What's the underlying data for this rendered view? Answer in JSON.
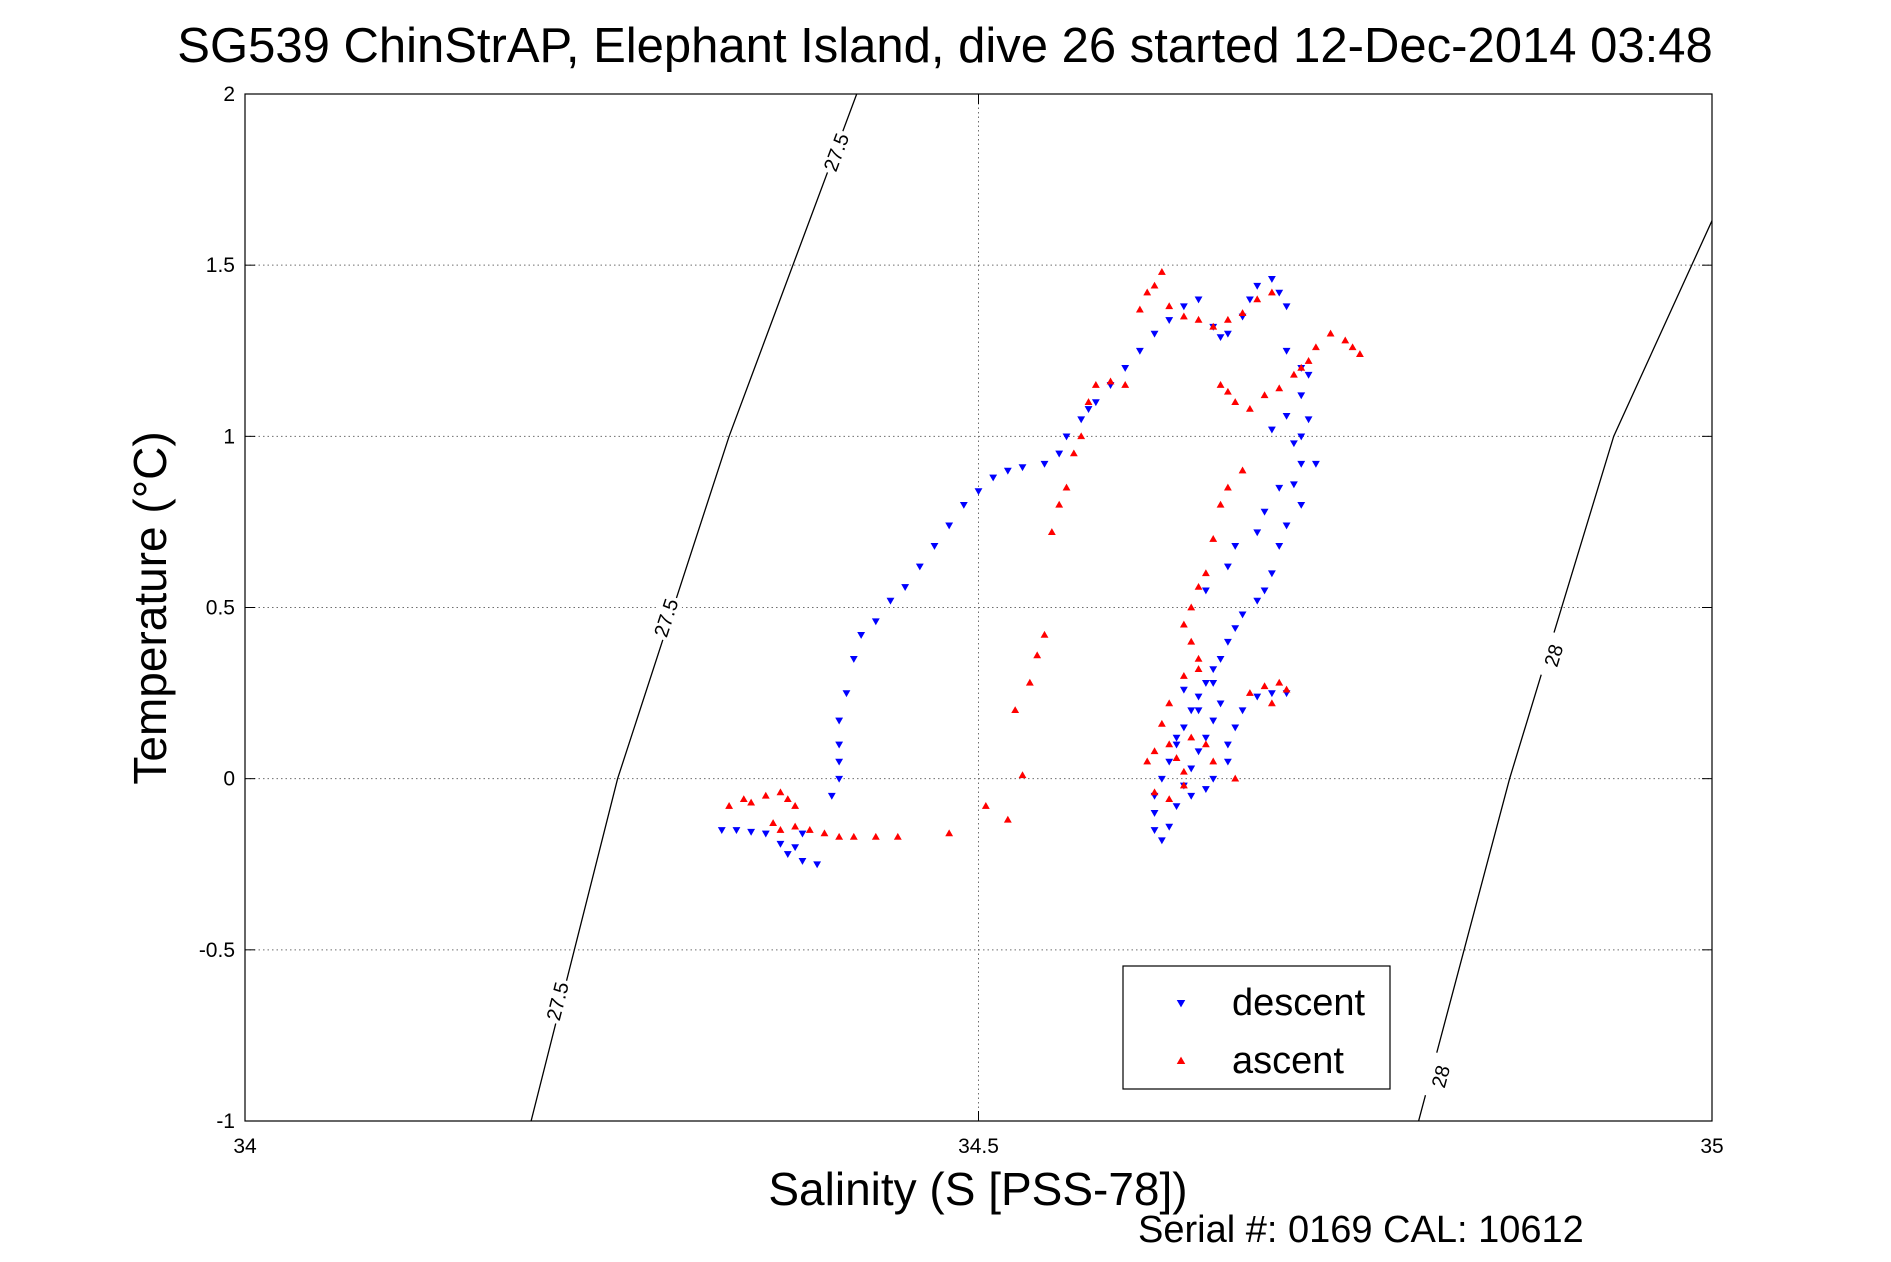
{
  "chart_data": {
    "type": "scatter",
    "title": "SG539 ChinStrAP, Elephant Island, dive 26 started 12-Dec-2014 03:48",
    "xlabel": "Salinity (S [PSS-78])",
    "ylabel": "Temperature (°C)",
    "footer": "Serial #: 0169 CAL: 10612",
    "xlim": [
      34,
      35
    ],
    "ylim": [
      -1,
      2
    ],
    "xticks": [
      34,
      34.5,
      35
    ],
    "xtick_labels": [
      "34",
      "34.5",
      "35"
    ],
    "yticks": [
      -1,
      -0.5,
      0,
      0.5,
      1,
      1.5,
      2
    ],
    "ytick_labels": [
      "-1",
      "-0.5",
      "0",
      "0.5",
      "1",
      "1.5",
      "2"
    ],
    "grid": true,
    "legend_position": "bottom-right",
    "colors": {
      "descent": "#0000ff",
      "ascent": "#ff0000",
      "contour": "#000000"
    },
    "series": [
      {
        "name": "descent",
        "marker": "triangle-down",
        "points": [
          [
            34.325,
            -0.15
          ],
          [
            34.335,
            -0.15
          ],
          [
            34.345,
            -0.155
          ],
          [
            34.355,
            -0.16
          ],
          [
            34.365,
            -0.19
          ],
          [
            34.37,
            -0.22
          ],
          [
            34.375,
            -0.2
          ],
          [
            34.38,
            -0.24
          ],
          [
            34.39,
            -0.25
          ],
          [
            34.38,
            -0.16
          ],
          [
            34.4,
            -0.05
          ],
          [
            34.405,
            0.0
          ],
          [
            34.405,
            0.05
          ],
          [
            34.405,
            0.1
          ],
          [
            34.405,
            0.17
          ],
          [
            34.41,
            0.25
          ],
          [
            34.415,
            0.35
          ],
          [
            34.42,
            0.42
          ],
          [
            34.43,
            0.46
          ],
          [
            34.44,
            0.52
          ],
          [
            34.45,
            0.56
          ],
          [
            34.46,
            0.62
          ],
          [
            34.47,
            0.68
          ],
          [
            34.48,
            0.74
          ],
          [
            34.49,
            0.8
          ],
          [
            34.5,
            0.84
          ],
          [
            34.51,
            0.88
          ],
          [
            34.52,
            0.9
          ],
          [
            34.53,
            0.91
          ],
          [
            34.545,
            0.92
          ],
          [
            34.555,
            0.95
          ],
          [
            34.56,
            1.0
          ],
          [
            34.57,
            1.05
          ],
          [
            34.575,
            1.08
          ],
          [
            34.58,
            1.1
          ],
          [
            34.59,
            1.15
          ],
          [
            34.6,
            1.2
          ],
          [
            34.61,
            1.25
          ],
          [
            34.62,
            1.3
          ],
          [
            34.63,
            1.34
          ],
          [
            34.64,
            1.38
          ],
          [
            34.65,
            1.4
          ],
          [
            34.66,
            1.32
          ],
          [
            34.665,
            1.29
          ],
          [
            34.67,
            1.3
          ],
          [
            34.68,
            1.35
          ],
          [
            34.685,
            1.4
          ],
          [
            34.69,
            1.44
          ],
          [
            34.7,
            1.46
          ],
          [
            34.705,
            1.42
          ],
          [
            34.71,
            1.38
          ],
          [
            34.71,
            1.25
          ],
          [
            34.72,
            1.2
          ],
          [
            34.725,
            1.18
          ],
          [
            34.72,
            1.12
          ],
          [
            34.725,
            1.05
          ],
          [
            34.72,
            1.0
          ],
          [
            34.715,
            0.98
          ],
          [
            34.72,
            0.92
          ],
          [
            34.715,
            0.86
          ],
          [
            34.72,
            0.8
          ],
          [
            34.71,
            0.74
          ],
          [
            34.705,
            0.68
          ],
          [
            34.7,
            0.6
          ],
          [
            34.695,
            0.55
          ],
          [
            34.69,
            0.52
          ],
          [
            34.68,
            0.48
          ],
          [
            34.675,
            0.44
          ],
          [
            34.67,
            0.4
          ],
          [
            34.665,
            0.35
          ],
          [
            34.66,
            0.32
          ],
          [
            34.655,
            0.28
          ],
          [
            34.65,
            0.24
          ],
          [
            34.645,
            0.2
          ],
          [
            34.64,
            0.15
          ],
          [
            34.635,
            0.1
          ],
          [
            34.63,
            0.05
          ],
          [
            34.625,
            0.0
          ],
          [
            34.62,
            -0.05
          ],
          [
            34.62,
            -0.1
          ],
          [
            34.62,
            -0.15
          ],
          [
            34.625,
            -0.18
          ],
          [
            34.63,
            -0.14
          ],
          [
            34.635,
            -0.08
          ],
          [
            34.64,
            -0.02
          ],
          [
            34.645,
            0.03
          ],
          [
            34.65,
            0.08
          ],
          [
            34.655,
            0.12
          ],
          [
            34.66,
            0.17
          ],
          [
            34.665,
            0.22
          ],
          [
            34.67,
            0.05
          ],
          [
            34.66,
            0.0
          ],
          [
            34.645,
            -0.05
          ],
          [
            34.635,
            0.12
          ],
          [
            34.65,
            0.2
          ],
          [
            34.66,
            0.28
          ],
          [
            34.64,
            0.26
          ],
          [
            34.655,
            -0.03
          ],
          [
            34.67,
            0.1
          ],
          [
            34.675,
            0.15
          ],
          [
            34.68,
            0.2
          ],
          [
            34.69,
            0.24
          ],
          [
            34.7,
            0.25
          ],
          [
            34.71,
            0.25
          ],
          [
            34.655,
            0.55
          ],
          [
            34.67,
            0.62
          ],
          [
            34.675,
            0.68
          ],
          [
            34.69,
            0.72
          ],
          [
            34.695,
            0.78
          ],
          [
            34.705,
            0.85
          ],
          [
            34.73,
            0.92
          ],
          [
            34.7,
            1.02
          ],
          [
            34.71,
            1.06
          ]
        ]
      },
      {
        "name": "ascent",
        "marker": "triangle-up",
        "points": [
          [
            34.33,
            -0.08
          ],
          [
            34.34,
            -0.06
          ],
          [
            34.345,
            -0.07
          ],
          [
            34.355,
            -0.05
          ],
          [
            34.365,
            -0.04
          ],
          [
            34.37,
            -0.06
          ],
          [
            34.375,
            -0.08
          ],
          [
            34.36,
            -0.13
          ],
          [
            34.365,
            -0.15
          ],
          [
            34.375,
            -0.14
          ],
          [
            34.385,
            -0.15
          ],
          [
            34.395,
            -0.16
          ],
          [
            34.405,
            -0.17
          ],
          [
            34.415,
            -0.17
          ],
          [
            34.43,
            -0.17
          ],
          [
            34.445,
            -0.17
          ],
          [
            34.48,
            -0.16
          ],
          [
            34.505,
            -0.08
          ],
          [
            34.52,
            -0.12
          ],
          [
            34.525,
            0.2
          ],
          [
            34.53,
            0.01
          ],
          [
            34.535,
            0.28
          ],
          [
            34.54,
            0.36
          ],
          [
            34.545,
            0.42
          ],
          [
            34.55,
            0.72
          ],
          [
            34.555,
            0.8
          ],
          [
            34.56,
            0.85
          ],
          [
            34.565,
            0.95
          ],
          [
            34.57,
            1.0
          ],
          [
            34.575,
            1.1
          ],
          [
            34.58,
            1.15
          ],
          [
            34.59,
            1.16
          ],
          [
            34.6,
            1.15
          ],
          [
            34.61,
            1.37
          ],
          [
            34.615,
            1.42
          ],
          [
            34.62,
            1.44
          ],
          [
            34.625,
            1.48
          ],
          [
            34.63,
            1.38
          ],
          [
            34.64,
            1.35
          ],
          [
            34.65,
            1.34
          ],
          [
            34.66,
            1.32
          ],
          [
            34.67,
            1.34
          ],
          [
            34.68,
            1.36
          ],
          [
            34.69,
            1.4
          ],
          [
            34.7,
            1.42
          ],
          [
            34.665,
            1.15
          ],
          [
            34.67,
            1.13
          ],
          [
            34.675,
            1.1
          ],
          [
            34.685,
            1.08
          ],
          [
            34.695,
            1.12
          ],
          [
            34.705,
            1.14
          ],
          [
            34.715,
            1.18
          ],
          [
            34.72,
            1.2
          ],
          [
            34.725,
            1.22
          ],
          [
            34.73,
            1.26
          ],
          [
            34.74,
            1.3
          ],
          [
            34.75,
            1.28
          ],
          [
            34.755,
            1.26
          ],
          [
            34.76,
            1.24
          ],
          [
            34.68,
            0.9
          ],
          [
            34.67,
            0.85
          ],
          [
            34.665,
            0.8
          ],
          [
            34.66,
            0.7
          ],
          [
            34.655,
            0.6
          ],
          [
            34.65,
            0.56
          ],
          [
            34.645,
            0.5
          ],
          [
            34.64,
            0.45
          ],
          [
            34.645,
            0.4
          ],
          [
            34.65,
            0.35
          ],
          [
            34.65,
            0.32
          ],
          [
            34.64,
            0.3
          ],
          [
            34.63,
            0.22
          ],
          [
            34.625,
            0.16
          ],
          [
            34.63,
            0.1
          ],
          [
            34.635,
            0.06
          ],
          [
            34.64,
            0.02
          ],
          [
            34.64,
            -0.02
          ],
          [
            34.63,
            -0.06
          ],
          [
            34.62,
            -0.04
          ],
          [
            34.615,
            0.05
          ],
          [
            34.62,
            0.08
          ],
          [
            34.645,
            0.12
          ],
          [
            34.655,
            0.1
          ],
          [
            34.66,
            0.05
          ],
          [
            34.675,
            0.0
          ],
          [
            34.685,
            0.25
          ],
          [
            34.695,
            0.27
          ],
          [
            34.705,
            0.28
          ],
          [
            34.71,
            0.26
          ],
          [
            34.7,
            0.22
          ]
        ]
      }
    ],
    "contours": [
      {
        "label": "27.5",
        "points": [
          [
            34.195,
            -1.0
          ],
          [
            34.254,
            0.0
          ],
          [
            34.33,
            1.0
          ],
          [
            34.417,
            2.0
          ]
        ],
        "label_at": [
          [
            34.213,
            -0.65
          ],
          [
            34.287,
            0.47
          ],
          [
            34.403,
            1.83
          ]
        ]
      },
      {
        "label": "28",
        "points": [
          [
            34.8,
            -1.0
          ],
          [
            34.862,
            0.0
          ],
          [
            34.933,
            1.0
          ],
          [
            35.0,
            1.63
          ]
        ],
        "label_at": [
          [
            34.815,
            -0.87
          ],
          [
            34.892,
            0.36
          ]
        ]
      }
    ]
  }
}
